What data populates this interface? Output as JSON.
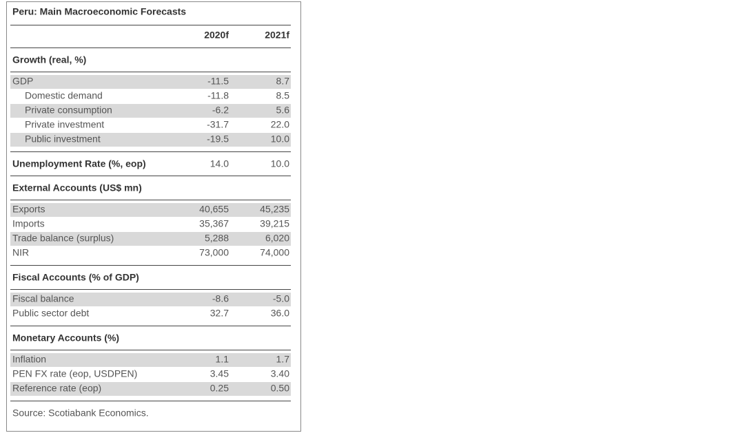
{
  "title": "Peru: Main Macroeconomic Forecasts",
  "columns": [
    "2020f",
    "2021f"
  ],
  "sections": [
    {
      "title": "Growth (real, %)",
      "rows": [
        {
          "label": "GDP",
          "values": [
            "-11.5",
            "8.7"
          ]
        },
        {
          "label": "Domestic demand",
          "values": [
            "-11.8",
            "8.5"
          ]
        },
        {
          "label": "Private consumption",
          "values": [
            "-6.2",
            "5.6"
          ]
        },
        {
          "label": "Private investment",
          "values": [
            "-31.7",
            "22.0"
          ]
        },
        {
          "label": "Public investment",
          "values": [
            "-19.5",
            "10.0"
          ]
        }
      ]
    },
    {
      "title": "Unemployment Rate (%, eop)",
      "values": [
        "14.0",
        "10.0"
      ]
    },
    {
      "title": "External Accounts (US$ mn)",
      "rows": [
        {
          "label": "Exports",
          "values": [
            "40,655",
            "45,235"
          ]
        },
        {
          "label": "Imports",
          "values": [
            "35,367",
            "39,215"
          ]
        },
        {
          "label": "Trade balance (surplus)",
          "values": [
            "5,288",
            "6,020"
          ]
        },
        {
          "label": "NIR",
          "values": [
            "73,000",
            "74,000"
          ]
        }
      ]
    },
    {
      "title": "Fiscal Accounts (% of GDP)",
      "rows": [
        {
          "label": "Fiscal balance",
          "values": [
            "-8.6",
            "-5.0"
          ]
        },
        {
          "label": "Public sector debt",
          "values": [
            "32.7",
            "36.0"
          ]
        }
      ]
    },
    {
      "title": "Monetary Accounts (%)",
      "rows": [
        {
          "label": "Inflation",
          "values": [
            "1.1",
            "1.7"
          ]
        },
        {
          "label": "PEN FX rate (eop, USDPEN)",
          "values": [
            "3.45",
            "3.40"
          ]
        },
        {
          "label": "Reference rate (eop)",
          "values": [
            "0.25",
            "0.50"
          ]
        }
      ]
    }
  ],
  "source": "Source: Scotiabank Economics."
}
